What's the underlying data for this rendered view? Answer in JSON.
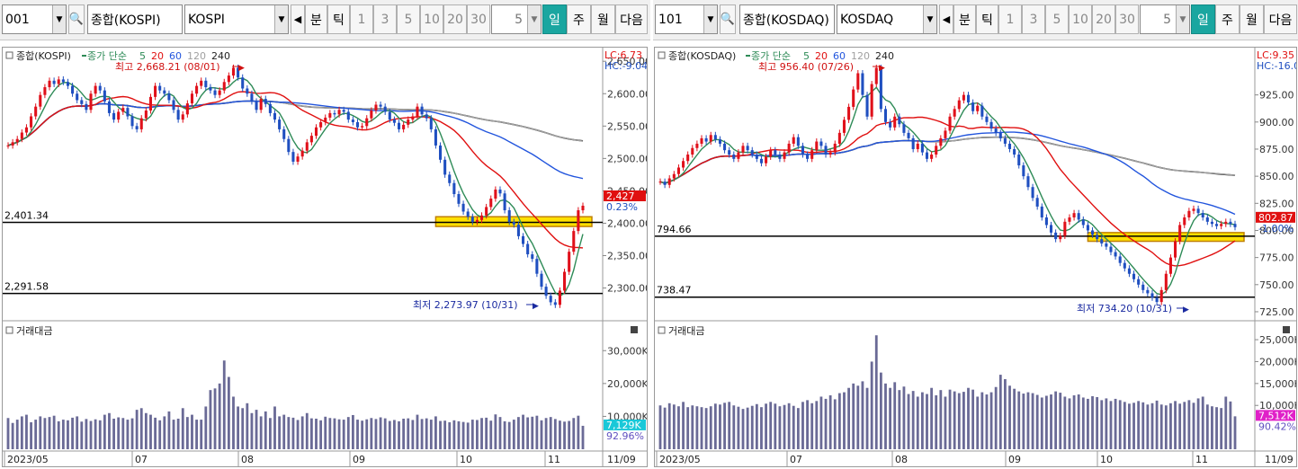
{
  "panes": [
    {
      "code": "001",
      "index_name": "종합(KOSPI)",
      "market": "KOSPI",
      "prev_label": "◀",
      "period_buttons": [
        "분",
        "틱",
        "1",
        "3",
        "5",
        "10",
        "20",
        "30"
      ],
      "count_value": "5",
      "day_label": "일",
      "week_label": "주",
      "month_label": "월",
      "next_label": "다음",
      "legend_title": "종합(KOSPI)",
      "legend_ma_label": "종가 단순",
      "ma_periods": [
        "5",
        "20",
        "60",
        "120",
        "240"
      ],
      "lc_label": "LC:6.73",
      "hc_label": "HC:-9.04",
      "high_note": "최고 2,668.21 (08/01)",
      "low_note": "최저 2,273.97 (10/31)",
      "line1_label": "2,401.34",
      "line2_label": "2,291.58",
      "current_price": "2,427",
      "current_pct": "0.23%",
      "price_ticks": [
        "2,650.00",
        "2,600.00",
        "2,550.00",
        "2,500.00",
        "2,450.00",
        "2,400.00",
        "2,350.00",
        "2,300.00"
      ],
      "volume_title": "거래대금",
      "volume_ticks": [
        "30,000K",
        "20,000K",
        "10,000K"
      ],
      "volume_current": "7,129K",
      "volume_pct": "92.96%",
      "date_labels": [
        "2023/05",
        "07",
        "08",
        "09",
        "10",
        "11",
        "11/09"
      ]
    },
    {
      "code": "101",
      "index_name": "종합(KOSDAQ)",
      "market": "KOSDAQ",
      "prev_label": "◀",
      "period_buttons": [
        "분",
        "틱",
        "1",
        "3",
        "5",
        "10",
        "20",
        "30"
      ],
      "count_value": "5",
      "day_label": "일",
      "week_label": "주",
      "month_label": "월",
      "next_label": "다음",
      "legend_title": "종합(KOSDAQ)",
      "legend_ma_label": "종가 단순",
      "ma_periods": [
        "5",
        "20",
        "60",
        "120",
        "240"
      ],
      "lc_label": "LC:9.35",
      "hc_label": "HC:-16.0",
      "high_note": "최고 956.40 (07/26)",
      "low_note": "최저 734.20 (10/31)",
      "line1_label": "794.66",
      "line2_label": "738.47",
      "current_price": "802.87",
      "current_pct": "-1.00%",
      "price_ticks": [
        "925.00",
        "900.00",
        "875.00",
        "850.00",
        "825.00",
        "800.00",
        "775.00",
        "750.00",
        "725.00"
      ],
      "volume_title": "거래대금",
      "volume_ticks": [
        "25,000K",
        "20,000K",
        "15,000K",
        "10,000K"
      ],
      "volume_current": "7,512K",
      "volume_pct": "90.42%",
      "date_labels": [
        "2023/05",
        "07",
        "08",
        "09",
        "10",
        "11",
        "11/09"
      ]
    }
  ],
  "colors": {
    "up": "#e0101a",
    "down": "#1f4fc0",
    "ma5": "#2e8b57",
    "ma20": "#e01010",
    "ma60": "#2255dd",
    "ma120": "#a0a0a0",
    "ma240": "#222222",
    "volume_bar": "#6a6a96",
    "highlight_fill": "#ffe000",
    "highlight_stroke": "#c08000"
  },
  "chart_data": [
    {
      "type": "candlestick",
      "title": "종합(KOSPI)",
      "x_range": [
        "2023/05",
        "11/09"
      ],
      "date_ticks": [
        "2023/05",
        "07",
        "08",
        "09",
        "10",
        "11"
      ],
      "y_range": [
        2255,
        2660
      ],
      "y_ticks": [
        2650,
        2600,
        2550,
        2500,
        2450,
        2400,
        2350,
        2300
      ],
      "close": [
        2520,
        2525,
        2530,
        2540,
        2548,
        2565,
        2580,
        2598,
        2610,
        2620,
        2615,
        2622,
        2618,
        2612,
        2600,
        2590,
        2584,
        2575,
        2600,
        2612,
        2605,
        2588,
        2570,
        2560,
        2572,
        2578,
        2565,
        2550,
        2545,
        2562,
        2574,
        2595,
        2612,
        2605,
        2600,
        2590,
        2575,
        2560,
        2568,
        2585,
        2600,
        2612,
        2620,
        2610,
        2605,
        2598,
        2605,
        2618,
        2628,
        2640,
        2625,
        2608,
        2600,
        2588,
        2575,
        2592,
        2584,
        2570,
        2560,
        2545,
        2530,
        2510,
        2495,
        2503,
        2512,
        2525,
        2535,
        2548,
        2556,
        2563,
        2570,
        2568,
        2575,
        2572,
        2560,
        2556,
        2548,
        2550,
        2562,
        2574,
        2583,
        2580,
        2572,
        2560,
        2555,
        2545,
        2552,
        2560,
        2565,
        2580,
        2568,
        2562,
        2545,
        2520,
        2498,
        2475,
        2462,
        2445,
        2430,
        2418,
        2410,
        2402,
        2405,
        2412,
        2425,
        2438,
        2452,
        2446,
        2420,
        2402,
        2398,
        2380,
        2368,
        2352,
        2345,
        2322,
        2302,
        2288,
        2278,
        2274,
        2296,
        2325,
        2356,
        2388,
        2420,
        2427
      ],
      "ma_lines": {
        "5": "computed",
        "20": "computed",
        "60": "computed",
        "120": "computed",
        "240": "computed"
      },
      "horizontal_lines": [
        2401.34,
        2291.58
      ],
      "highlight_band": [
        2395,
        2410
      ],
      "high": {
        "value": 2668.21,
        "date": "08/01"
      },
      "low": {
        "value": 2273.97,
        "date": "10/31"
      },
      "volume_y_range": [
        0,
        38000
      ],
      "volume_ticks": [
        30000,
        20000,
        10000
      ],
      "volume": [
        9500,
        8000,
        9000,
        10000,
        10500,
        8200,
        9000,
        10000,
        9500,
        9800,
        10200,
        8500,
        9000,
        8800,
        9600,
        10000,
        8400,
        9200,
        8600,
        9100,
        8800,
        10500,
        11000,
        9300,
        9700,
        9500,
        9000,
        9400,
        12000,
        12500,
        11000,
        10500,
        9600,
        8800,
        10000,
        11500,
        9000,
        9300,
        12500,
        9800,
        10500,
        9000,
        9000,
        13000,
        18000,
        18500,
        20000,
        27000,
        22000,
        16000,
        13000,
        12500,
        14000,
        11000,
        12000,
        10000,
        11500,
        9500,
        13000,
        10000,
        10500,
        9800,
        9600,
        8900,
        10000,
        11000,
        9400,
        9300,
        8800,
        9900,
        9500,
        9400,
        9100,
        9000,
        9800,
        10400,
        9000,
        8700,
        9100,
        9500,
        9200,
        9700,
        9400,
        8600,
        8900,
        8500,
        9300,
        9400,
        8900,
        10500,
        9200,
        9400,
        9000,
        10000,
        8600,
        8700,
        8200,
        8800,
        8500,
        8300,
        8100,
        9000,
        8900,
        9500,
        9600,
        8700,
        10600,
        9800,
        8500,
        8300,
        9000,
        9800,
        10500,
        9700,
        9900,
        10200,
        8800,
        9500,
        9800,
        9200,
        8700,
        8400,
        8600,
        9500,
        10200,
        7129
      ]
    },
    {
      "type": "candlestick",
      "title": "종합(KOSDAQ)",
      "x_range": [
        "2023/05",
        "11/09"
      ],
      "date_ticks": [
        "2023/05",
        "07",
        "08",
        "09",
        "10",
        "11"
      ],
      "y_range": [
        720,
        962
      ],
      "y_ticks": [
        925,
        900,
        875,
        850,
        825,
        800,
        775,
        750,
        725
      ],
      "close": [
        845,
        842,
        848,
        852,
        858,
        864,
        870,
        876,
        880,
        885,
        882,
        888,
        884,
        880,
        874,
        870,
        866,
        872,
        878,
        874,
        870,
        866,
        862,
        868,
        874,
        870,
        866,
        872,
        880,
        886,
        878,
        870,
        866,
        874,
        882,
        878,
        870,
        872,
        880,
        890,
        902,
        914,
        930,
        945,
        925,
        905,
        935,
        950,
        912,
        900,
        895,
        905,
        898,
        890,
        885,
        875,
        880,
        872,
        866,
        870,
        878,
        885,
        892,
        905,
        912,
        920,
        925,
        918,
        910,
        915,
        905,
        900,
        894,
        890,
        885,
        880,
        875,
        870,
        860,
        850,
        840,
        830,
        822,
        812,
        805,
        798,
        792,
        795,
        808,
        812,
        816,
        810,
        805,
        800,
        796,
        792,
        788,
        785,
        780,
        776,
        770,
        765,
        760,
        755,
        750,
        745,
        742,
        738,
        734,
        745,
        760,
        775,
        790,
        805,
        812,
        818,
        820,
        816,
        812,
        808,
        806,
        804,
        806,
        808,
        806,
        803
      ],
      "ma_lines": {
        "5": "computed",
        "20": "computed",
        "60": "computed",
        "120": "computed",
        "240": "computed"
      },
      "horizontal_lines": [
        794.66,
        738.47
      ],
      "highlight_band": [
        790,
        798
      ],
      "high": {
        "value": 956.4,
        "date": "07/26"
      },
      "low": {
        "value": 734.2,
        "date": "10/31"
      },
      "volume_y_range": [
        0,
        28500
      ],
      "volume_ticks": [
        25000,
        20000,
        15000,
        10000
      ],
      "volume": [
        10000,
        9500,
        10500,
        10200,
        9800,
        10800,
        9600,
        10000,
        9800,
        9600,
        9400,
        9800,
        10400,
        10200,
        10600,
        10800,
        10000,
        9700,
        9200,
        9500,
        9900,
        10300,
        9600,
        10400,
        10800,
        10400,
        9800,
        10100,
        10500,
        9900,
        9400,
        10800,
        11200,
        10500,
        11000,
        12000,
        11500,
        12300,
        11400,
        12800,
        13000,
        14000,
        15000,
        14500,
        15500,
        14000,
        20000,
        26000,
        17500,
        15000,
        14000,
        15300,
        13500,
        14300,
        12600,
        13300,
        12000,
        13000,
        12600,
        14000,
        12300,
        13500,
        12000,
        13600,
        13200,
        12800,
        13100,
        14000,
        13600,
        12000,
        13000,
        12500,
        13000,
        14200,
        17000,
        16000,
        14500,
        13800,
        13200,
        12700,
        13000,
        12800,
        12400,
        11800,
        12200,
        12500,
        13200,
        12900,
        12000,
        11600,
        12300,
        12500,
        11800,
        11500,
        12100,
        11900,
        11200,
        11600,
        11000,
        11500,
        11200,
        10800,
        10400,
        10600,
        11000,
        10700,
        10200,
        10500,
        11100,
        10200,
        10000,
        10500,
        11000,
        10400,
        10800,
        11200,
        10600,
        11600,
        12000,
        10200,
        9800,
        9600,
        9400,
        12000,
        10900,
        7512
      ]
    }
  ]
}
